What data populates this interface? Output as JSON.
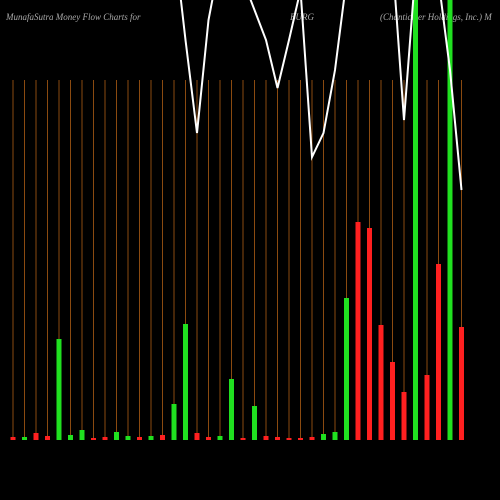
{
  "chart_data": {
    "type": "bar",
    "title": "MunafaSutra  Money Flow  Charts for",
    "symbol": "BURG",
    "company": "(Chanticleer Holdings, Inc.) M",
    "ylim": [
      0,
      440
    ],
    "bar_colors": [
      "#ff2020",
      "#20e020",
      "#ff2020",
      "#ff2020",
      "#20e020",
      "#20e020",
      "#20e020",
      "#ff2020",
      "#ff2020",
      "#20e020",
      "#20e020",
      "#ff2020",
      "#20e020",
      "#ff2020",
      "#20e020",
      "#20e020",
      "#ff2020",
      "#ff2020",
      "#20e020",
      "#20e020",
      "#ff2020",
      "#20e020",
      "#ff2020",
      "#ff2020",
      "#ff2020",
      "#ff2020",
      "#ff2020",
      "#20e020",
      "#20e020",
      "#20e020",
      "#ff2020",
      "#ff2020",
      "#ff2020",
      "#ff2020",
      "#ff2020",
      "#20e020",
      "#ff2020",
      "#ff2020",
      "#20e020",
      "#ff2020"
    ],
    "values": [
      3,
      3,
      7,
      4,
      101,
      5,
      10,
      2,
      3,
      8,
      4,
      3,
      4,
      5,
      36,
      116,
      7,
      3,
      4,
      61,
      2,
      34,
      4,
      3,
      2,
      2,
      3,
      6,
      8,
      142,
      218,
      212,
      115,
      78,
      48,
      440,
      65,
      176,
      440,
      113
    ],
    "line_color": "#ffffff",
    "line_values": [
      520,
      520,
      520,
      520,
      520,
      520,
      520,
      520,
      520,
      520,
      520,
      520,
      520,
      520,
      500,
      400,
      307,
      420,
      480,
      470,
      460,
      430,
      400,
      352,
      400,
      450,
      283,
      307,
      370,
      460,
      520,
      520,
      520,
      480,
      320,
      470,
      470,
      460,
      370,
      250
    ]
  }
}
